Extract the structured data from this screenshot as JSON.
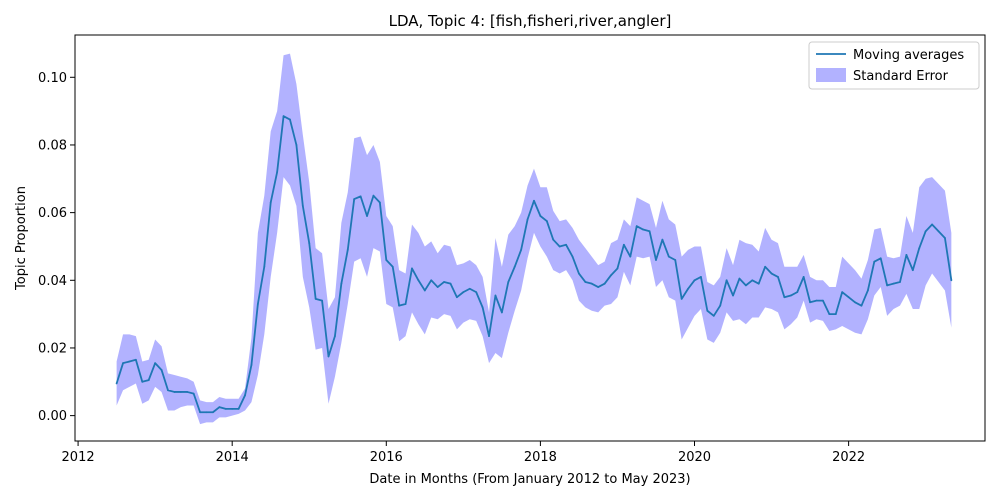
{
  "colors": {
    "line": "#1f77b4",
    "band": "#0000ff",
    "axis": "#000000",
    "background": "#ffffff"
  },
  "chart_data": {
    "type": "line",
    "title": "LDA, Topic 4: [fish,fisheri,river,angler]",
    "xlabel": "Date in Months (From January 2012 to May 2023)",
    "ylabel": "Topic Proportion",
    "xlim": [
      2011.96,
      2023.77
    ],
    "ylim": [
      -0.0075,
      0.1125
    ],
    "grid": false,
    "legend_position": "top-right",
    "x_ticks": [
      "2012",
      "2014",
      "2016",
      "2018",
      "2020",
      "2022"
    ],
    "y_ticks": [
      "0.00",
      "0.02",
      "0.04",
      "0.06",
      "0.08",
      "0.10"
    ],
    "legend": {
      "line_label": "Moving averages",
      "band_label": "Standard Error"
    },
    "x_start": "2012-07",
    "x_end": "2023-05",
    "series": [
      {
        "name": "Moving averages",
        "values": [
          0.0095,
          0.0155,
          0.016,
          0.0165,
          0.01,
          0.0105,
          0.0155,
          0.0135,
          0.0075,
          0.007,
          0.007,
          0.007,
          0.0065,
          0.001,
          0.001,
          0.001,
          0.0025,
          0.002,
          0.002,
          0.002,
          0.006,
          0.015,
          0.033,
          0.044,
          0.063,
          0.072,
          0.0885,
          0.0875,
          0.08,
          0.062,
          0.051,
          0.0345,
          0.034,
          0.0175,
          0.0235,
          0.039,
          0.049,
          0.064,
          0.0648,
          0.059,
          0.065,
          0.063,
          0.046,
          0.044,
          0.0325,
          0.033,
          0.0435,
          0.04,
          0.037,
          0.04,
          0.038,
          0.0395,
          0.039,
          0.035,
          0.0365,
          0.0375,
          0.0365,
          0.032,
          0.0235,
          0.0355,
          0.0305,
          0.0395,
          0.044,
          0.049,
          0.058,
          0.0635,
          0.059,
          0.0575,
          0.052,
          0.05,
          0.0505,
          0.047,
          0.042,
          0.0395,
          0.039,
          0.038,
          0.039,
          0.0415,
          0.0435,
          0.0505,
          0.047,
          0.056,
          0.055,
          0.0545,
          0.046,
          0.052,
          0.047,
          0.046,
          0.0345,
          0.0375,
          0.04,
          0.041,
          0.031,
          0.0295,
          0.0325,
          0.04,
          0.0355,
          0.0405,
          0.0385,
          0.04,
          0.039,
          0.044,
          0.042,
          0.041,
          0.035,
          0.0355,
          0.0365,
          0.041,
          0.0335,
          0.034,
          0.034,
          0.03,
          0.03,
          0.0365,
          0.035,
          0.0335,
          0.0325,
          0.037,
          0.0455,
          0.0465,
          0.0385,
          0.039,
          0.0395,
          0.0475,
          0.043,
          0.0495,
          0.0545,
          0.0565,
          0.0545,
          0.0525,
          0.04
        ]
      },
      {
        "name": "Standard Error",
        "upper": [
          0.016,
          0.024,
          0.024,
          0.0235,
          0.016,
          0.0165,
          0.0225,
          0.0205,
          0.0125,
          0.012,
          0.0115,
          0.011,
          0.01,
          0.0045,
          0.004,
          0.004,
          0.0055,
          0.005,
          0.005,
          0.005,
          0.008,
          0.023,
          0.054,
          0.065,
          0.084,
          0.09,
          0.1065,
          0.107,
          0.098,
          0.083,
          0.069,
          0.0495,
          0.048,
          0.0315,
          0.035,
          0.057,
          0.066,
          0.082,
          0.0825,
          0.077,
          0.08,
          0.075,
          0.059,
          0.056,
          0.043,
          0.042,
          0.0565,
          0.054,
          0.05,
          0.0515,
          0.048,
          0.0505,
          0.05,
          0.0445,
          0.045,
          0.046,
          0.0445,
          0.041,
          0.0305,
          0.0525,
          0.044,
          0.0535,
          0.056,
          0.06,
          0.068,
          0.073,
          0.0675,
          0.0675,
          0.0605,
          0.0575,
          0.058,
          0.0555,
          0.052,
          0.0495,
          0.047,
          0.0445,
          0.0455,
          0.051,
          0.052,
          0.058,
          0.056,
          0.0645,
          0.0635,
          0.0625,
          0.0555,
          0.0635,
          0.058,
          0.0565,
          0.047,
          0.049,
          0.05,
          0.05,
          0.0395,
          0.0385,
          0.041,
          0.0495,
          0.0445,
          0.052,
          0.051,
          0.0505,
          0.0485,
          0.0555,
          0.052,
          0.051,
          0.044,
          0.044,
          0.044,
          0.0475,
          0.041,
          0.04,
          0.04,
          0.038,
          0.038,
          0.047,
          0.045,
          0.043,
          0.0405,
          0.046,
          0.055,
          0.0555,
          0.047,
          0.0465,
          0.047,
          0.059,
          0.054,
          0.0675,
          0.07,
          0.0705,
          0.0685,
          0.0665,
          0.054
        ],
        "lower": [
          0.003,
          0.0075,
          0.0085,
          0.0095,
          0.0035,
          0.0045,
          0.0085,
          0.007,
          0.0015,
          0.0015,
          0.0025,
          0.003,
          0.003,
          -0.0025,
          -0.002,
          -0.002,
          -0.0005,
          -0.0005,
          0.0,
          0.0005,
          0.0015,
          0.004,
          0.012,
          0.024,
          0.041,
          0.054,
          0.0705,
          0.068,
          0.062,
          0.041,
          0.032,
          0.0195,
          0.02,
          0.0035,
          0.0115,
          0.0215,
          0.033,
          0.0455,
          0.0465,
          0.041,
          0.0495,
          0.0485,
          0.033,
          0.032,
          0.022,
          0.0235,
          0.0305,
          0.027,
          0.024,
          0.029,
          0.0285,
          0.03,
          0.0295,
          0.0255,
          0.0275,
          0.0285,
          0.028,
          0.0235,
          0.0155,
          0.0185,
          0.017,
          0.0245,
          0.031,
          0.037,
          0.0465,
          0.054,
          0.05,
          0.047,
          0.043,
          0.042,
          0.043,
          0.04,
          0.034,
          0.032,
          0.031,
          0.0305,
          0.0325,
          0.033,
          0.035,
          0.0425,
          0.0385,
          0.047,
          0.0465,
          0.047,
          0.038,
          0.04,
          0.035,
          0.034,
          0.0225,
          0.026,
          0.0295,
          0.0315,
          0.0225,
          0.0215,
          0.0245,
          0.0305,
          0.028,
          0.0285,
          0.027,
          0.029,
          0.029,
          0.032,
          0.0315,
          0.0305,
          0.0255,
          0.027,
          0.029,
          0.034,
          0.0275,
          0.0285,
          0.028,
          0.025,
          0.0255,
          0.0265,
          0.0255,
          0.0245,
          0.024,
          0.0285,
          0.0355,
          0.038,
          0.0295,
          0.0315,
          0.0325,
          0.036,
          0.0315,
          0.0315,
          0.0385,
          0.042,
          0.0395,
          0.037,
          0.026
        ]
      }
    ]
  }
}
